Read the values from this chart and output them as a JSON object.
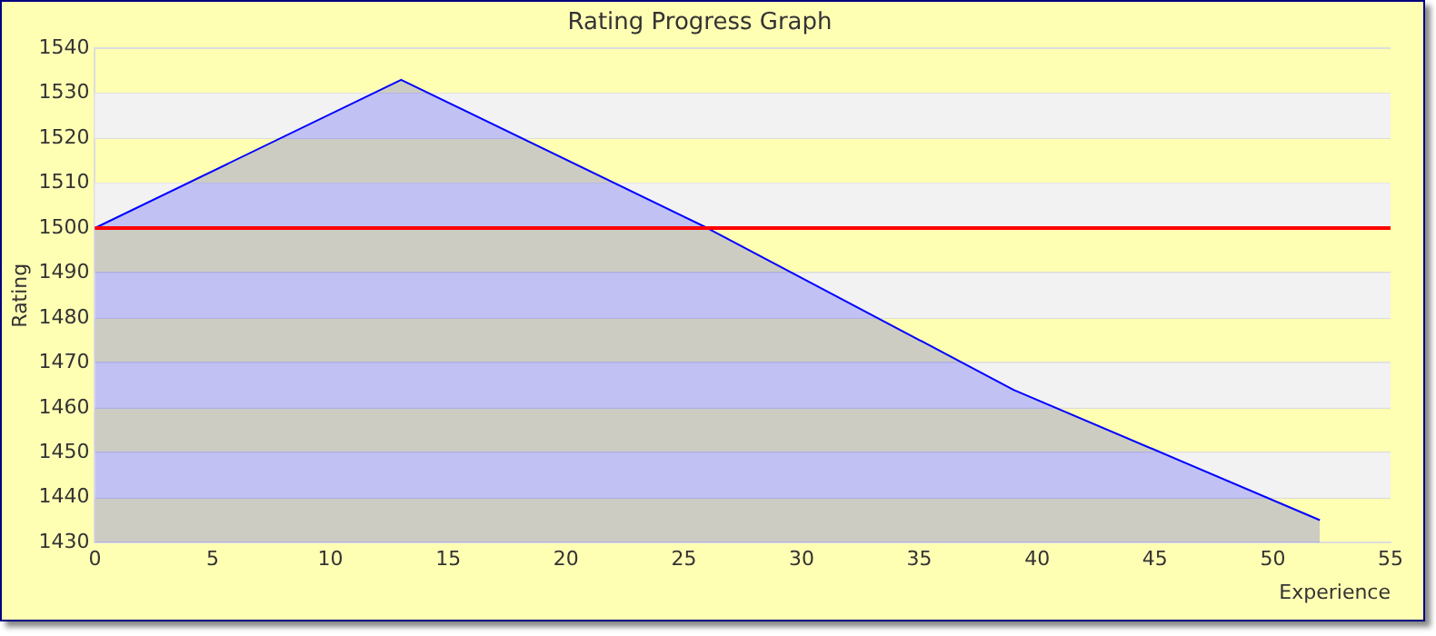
{
  "chart_data": {
    "type": "area",
    "title": "Rating Progress Graph",
    "xlabel": "Experience",
    "ylabel": "Rating",
    "x": [
      0,
      13,
      26,
      39,
      52
    ],
    "series": [
      {
        "color": "#0000ff",
        "values": [
          1500,
          1533,
          1500,
          1464,
          1435
        ]
      }
    ],
    "xlim": [
      0,
      55
    ],
    "xticks": [
      0,
      5,
      10,
      15,
      20,
      25,
      30,
      35,
      40,
      45,
      50,
      55
    ],
    "ylim": [
      1430,
      1540
    ],
    "yticks": [
      1430,
      1440,
      1450,
      1460,
      1470,
      1480,
      1490,
      1500,
      1510,
      1520,
      1530,
      1540
    ],
    "ref_lines": [
      {
        "axis": "y",
        "value": 1500,
        "color": "#ff0000"
      }
    ],
    "grid": "y",
    "legend": false
  }
}
